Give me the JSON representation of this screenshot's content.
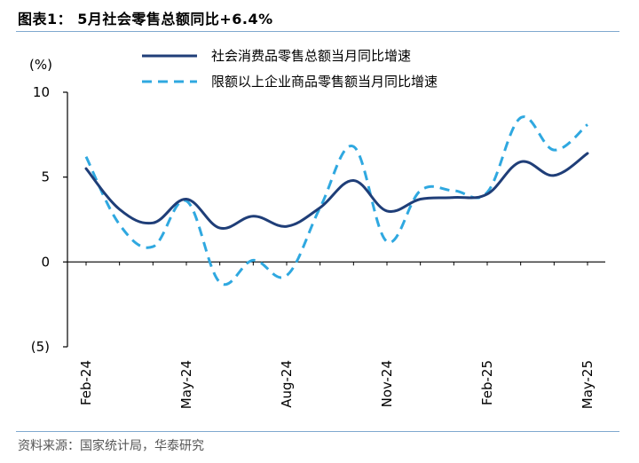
{
  "header": {
    "title": "图表1：  5月社会零售总额同比+6.4%"
  },
  "footer": {
    "source": "资料来源：国家统计局，华泰研究"
  },
  "chart_data": {
    "type": "line",
    "unit_label": "(%)",
    "ylim": [
      -5,
      10
    ],
    "yticks": [
      {
        "value": 10,
        "label": "10"
      },
      {
        "value": 5,
        "label": "5"
      },
      {
        "value": 0,
        "label": "0"
      },
      {
        "value": -5,
        "label": "(5)"
      }
    ],
    "x": [
      "Feb-24",
      "Mar-24",
      "Apr-24",
      "May-24",
      "Jun-24",
      "Jul-24",
      "Aug-24",
      "Sep-24",
      "Oct-24",
      "Nov-24",
      "Dec-24",
      "Jan-25",
      "Feb-25",
      "Mar-25",
      "Apr-25",
      "May-25"
    ],
    "xtick_labels": [
      "Feb-24",
      "May-24",
      "Aug-24",
      "Nov-24",
      "Feb-25",
      "May-25"
    ],
    "grid": false,
    "legend_position": "top",
    "series": [
      {
        "name": "社会消费品零售总额当月同比增速",
        "style": "solid",
        "color": "#1f3e78",
        "values": [
          5.5,
          3.1,
          2.3,
          3.7,
          2.0,
          2.7,
          2.1,
          3.2,
          4.8,
          3.0,
          3.7,
          3.8,
          4.0,
          5.9,
          5.1,
          6.4
        ]
      },
      {
        "name": "限额以上企业商品零售额当月同比增速",
        "style": "dashed",
        "color": "#2fa8e0",
        "values": [
          6.2,
          2.2,
          0.9,
          3.6,
          -1.2,
          0.1,
          -0.8,
          3.2,
          6.8,
          1.2,
          4.2,
          4.2,
          4.1,
          8.5,
          6.6,
          8.1
        ]
      }
    ]
  }
}
